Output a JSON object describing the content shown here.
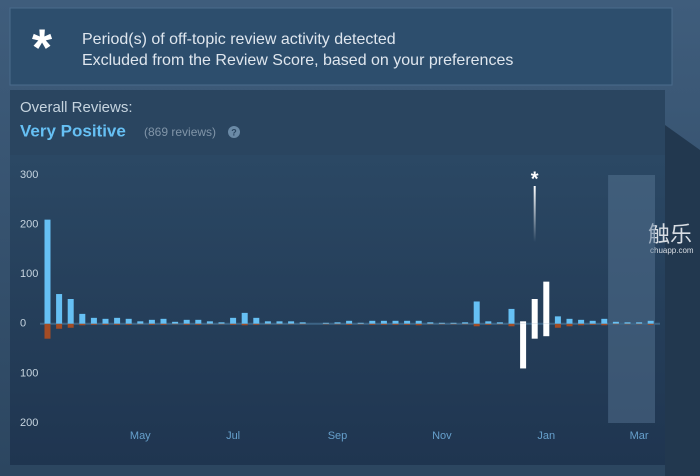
{
  "banner": {
    "symbol": "*",
    "line1": "Period(s) of off-topic review activity detected",
    "line2": "Excluded from the Review Score, based on your preferences"
  },
  "summary": {
    "label": "Overall Reviews:",
    "rating": "Very Positive",
    "count": "(869 reviews)",
    "help": "?"
  },
  "watermark": {
    "title": "触乐",
    "site": "chuapp.com"
  },
  "chart_data": {
    "type": "bar",
    "categories": [
      null,
      null,
      null,
      null,
      null,
      null,
      null,
      null,
      "May",
      null,
      null,
      null,
      null,
      null,
      null,
      null,
      "Jul",
      null,
      null,
      null,
      null,
      null,
      null,
      null,
      null,
      "Sep",
      null,
      null,
      null,
      null,
      null,
      null,
      null,
      null,
      "Nov",
      null,
      null,
      null,
      null,
      null,
      null,
      null,
      null,
      "Jan",
      null,
      null,
      null,
      null,
      null,
      null,
      null,
      "Mar",
      null
    ],
    "series": [
      {
        "color": "#66c0f4",
        "values": [
          210,
          60,
          50,
          20,
          12,
          10,
          12,
          10,
          5,
          8,
          10,
          4,
          8,
          8,
          5,
          3,
          12,
          22,
          12,
          5,
          5,
          5,
          3,
          0,
          2,
          3,
          6,
          2,
          6,
          6,
          6,
          6,
          6,
          3,
          2,
          2,
          3,
          45,
          5,
          3,
          30,
          5,
          50,
          85,
          15,
          10,
          8,
          6,
          10,
          4,
          3,
          3,
          6
        ]
      },
      {
        "color": "#a34c25",
        "values": [
          -30,
          -10,
          -8,
          -3,
          -2,
          -2,
          -2,
          -2,
          -1,
          -2,
          -2,
          -1,
          -2,
          -2,
          -1,
          -1,
          -2,
          -3,
          -2,
          -1,
          -1,
          -1,
          -1,
          0,
          -1,
          -1,
          -2,
          -1,
          -2,
          -2,
          -2,
          -2,
          -3,
          -1,
          -1,
          -1,
          -1,
          -5,
          -2,
          -1,
          -5,
          -90,
          -30,
          -25,
          -8,
          -5,
          -3,
          -2,
          -3,
          -1,
          -1,
          -1,
          -2
        ]
      }
    ],
    "excluded_color": "#ffffff",
    "excluded_indices": [
      41,
      42,
      43
    ],
    "excluded_marker": "*",
    "recent_from_index": 49,
    "ylim": [
      -200,
      300
    ],
    "yticks": [
      {
        "value": -200,
        "label": "200"
      },
      {
        "value": -100,
        "label": "100"
      },
      0,
      100,
      200,
      300
    ]
  }
}
